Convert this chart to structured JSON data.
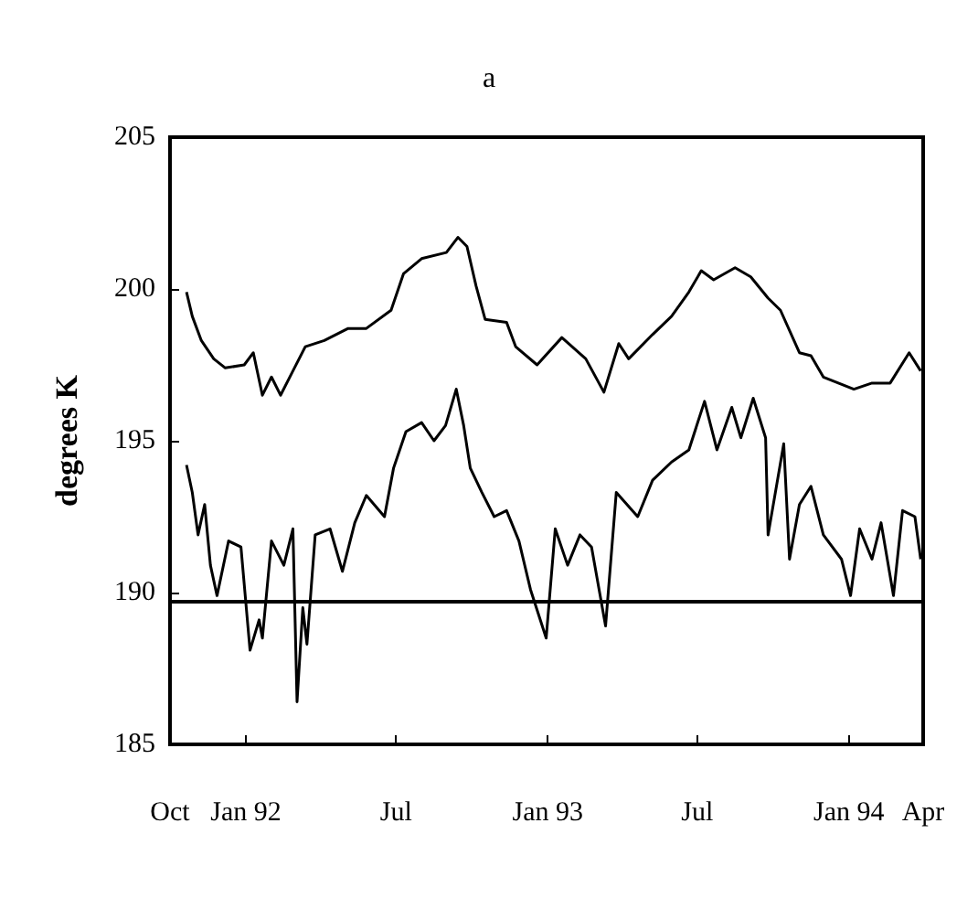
{
  "chart_data": {
    "type": "line",
    "title": "a",
    "ylabel": "degrees K",
    "xlim": [
      "1991-10-01",
      "1994-04-01"
    ],
    "ylim": [
      185,
      205
    ],
    "yticks": [
      185,
      190,
      195,
      200,
      205
    ],
    "xticks": [
      {
        "value": "1991-10-01",
        "label": "Oct"
      },
      {
        "value": "1992-01-01",
        "label": "Jan 92"
      },
      {
        "value": "1992-07-01",
        "label": "Jul"
      },
      {
        "value": "1993-01-01",
        "label": "Jan 93"
      },
      {
        "value": "1993-07-01",
        "label": "Jul"
      },
      {
        "value": "1994-01-01",
        "label": "Jan 94"
      },
      {
        "value": "1994-04-01",
        "label": "Apr"
      }
    ],
    "marker": "none",
    "line_style": "solid",
    "ref_lines": [
      {
        "axis": "y",
        "value": 189.7,
        "color": "#000000"
      }
    ],
    "series": [
      {
        "color": "#000000",
        "x": [
          "1991-10-21",
          "1991-10-28",
          "1991-11-08",
          "1991-11-23",
          "1991-12-07",
          "1991-12-30",
          "1992-01-10",
          "1992-01-21",
          "1992-02-01",
          "1992-02-12",
          "1992-02-27",
          "1992-03-13",
          "1992-04-05",
          "1992-05-04",
          "1992-05-26",
          "1992-06-25",
          "1992-07-10",
          "1992-08-01",
          "1992-08-31",
          "1992-09-14",
          "1992-09-25",
          "1992-10-06",
          "1992-10-17",
          "1992-11-12",
          "1992-11-23",
          "1992-12-19",
          "1993-01-18",
          "1993-02-16",
          "1993-03-10",
          "1993-03-28",
          "1993-04-09",
          "1993-05-08",
          "1993-05-31",
          "1993-06-21",
          "1993-07-06",
          "1993-07-21",
          "1993-08-16",
          "1993-09-04",
          "1993-09-25",
          "1993-10-10",
          "1993-11-02",
          "1993-11-16",
          "1993-12-01",
          "1994-01-07",
          "1994-01-29",
          "1994-02-20",
          "1994-03-15",
          "1994-03-29"
        ],
        "values": [
          199.9,
          199.1,
          198.3,
          197.7,
          197.4,
          197.5,
          197.9,
          196.5,
          197.1,
          196.5,
          197.3,
          198.1,
          198.3,
          198.7,
          198.7,
          199.3,
          200.5,
          201.0,
          201.2,
          201.7,
          201.4,
          200.1,
          199.0,
          198.9,
          198.1,
          197.5,
          198.4,
          197.7,
          196.6,
          198.2,
          197.7,
          198.5,
          199.1,
          199.9,
          200.6,
          200.3,
          200.7,
          200.4,
          199.7,
          199.3,
          197.9,
          197.8,
          197.1,
          196.7,
          196.9,
          196.9,
          197.9,
          197.3
        ]
      },
      {
        "color": "#000000",
        "x": [
          "1991-10-21",
          "1991-10-28",
          "1991-11-04",
          "1991-11-12",
          "1991-11-19",
          "1991-11-27",
          "1991-12-11",
          "1991-12-26",
          "1992-01-06",
          "1992-01-17",
          "1992-01-21",
          "1992-02-01",
          "1992-02-16",
          "1992-02-27",
          "1992-03-03",
          "1992-03-10",
          "1992-03-15",
          "1992-03-25",
          "1992-04-12",
          "1992-04-27",
          "1992-05-12",
          "1992-05-26",
          "1992-06-17",
          "1992-06-28",
          "1992-07-13",
          "1992-08-01",
          "1992-08-16",
          "1992-08-30",
          "1992-09-12",
          "1992-09-21",
          "1992-09-29",
          "1992-10-13",
          "1992-10-28",
          "1992-11-12",
          "1992-11-27",
          "1992-12-11",
          "1992-12-30",
          "1993-01-10",
          "1993-01-25",
          "1993-02-09",
          "1993-02-23",
          "1993-03-12",
          "1993-03-25",
          "1993-04-20",
          "1993-05-08",
          "1993-05-31",
          "1993-06-21",
          "1993-07-10",
          "1993-07-25",
          "1993-08-12",
          "1993-08-23",
          "1993-09-07",
          "1993-09-22",
          "1993-09-25",
          "1993-10-14",
          "1993-10-21",
          "1993-11-02",
          "1993-11-16",
          "1993-12-01",
          "1993-12-23",
          "1994-01-03",
          "1994-01-14",
          "1994-01-29",
          "1994-02-09",
          "1994-02-24",
          "1994-03-07",
          "1994-03-22",
          "1994-03-29"
        ],
        "values": [
          194.2,
          193.3,
          191.9,
          192.9,
          190.9,
          189.9,
          191.7,
          191.5,
          188.1,
          189.1,
          188.5,
          191.7,
          190.9,
          192.1,
          186.4,
          189.5,
          188.3,
          191.9,
          192.1,
          190.7,
          192.3,
          193.2,
          192.5,
          194.1,
          195.3,
          195.6,
          195.0,
          195.5,
          196.7,
          195.5,
          194.1,
          193.3,
          192.5,
          192.7,
          191.7,
          190.1,
          188.5,
          192.1,
          190.9,
          191.9,
          191.5,
          188.9,
          193.3,
          192.5,
          193.7,
          194.3,
          194.7,
          196.3,
          194.7,
          196.1,
          195.1,
          196.4,
          195.1,
          191.9,
          194.9,
          191.1,
          192.9,
          193.5,
          191.9,
          191.1,
          189.9,
          192.1,
          191.1,
          192.3,
          189.9,
          192.7,
          192.5,
          191.1
        ]
      }
    ]
  }
}
